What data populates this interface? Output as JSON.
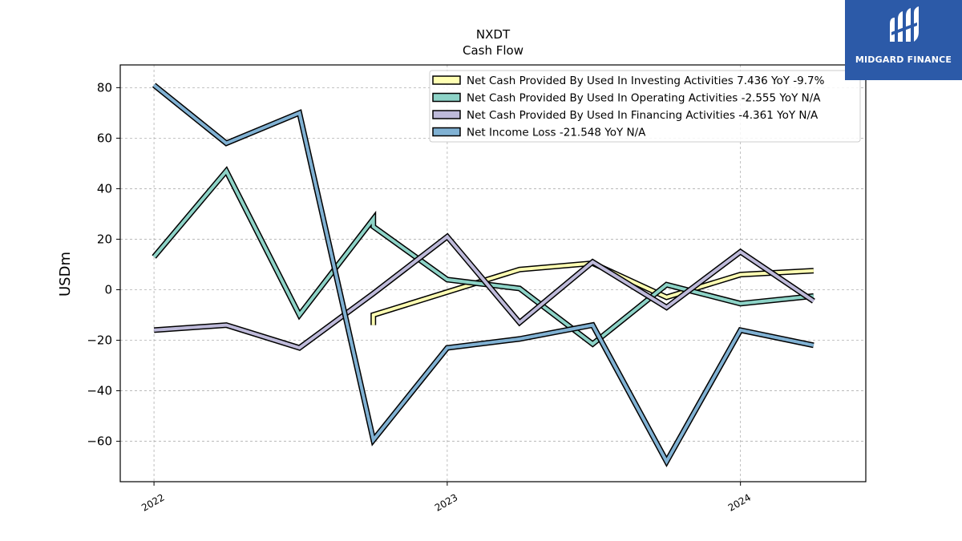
{
  "brand": {
    "name": "MIDGARD FINANCE",
    "bg_color": "#2c5aa8"
  },
  "chart_data": {
    "type": "line",
    "title": "NXDT",
    "subtitle": "Cash Flow",
    "ylabel": "USDm",
    "xlabel": "",
    "ylim": [
      -76,
      89
    ],
    "yticks": [
      80,
      60,
      40,
      20,
      0,
      -20,
      -40,
      -60
    ],
    "ytick_labels": [
      "80",
      "60",
      "40",
      "20",
      "0",
      "−20",
      "−40",
      "−60"
    ],
    "xlim": [
      "2021-11-20",
      "2024-06-05"
    ],
    "xticks": [
      "2022-01-01",
      "2023-01-01",
      "2024-01-01"
    ],
    "xtick_labels": [
      "2022",
      "2023",
      "2024"
    ],
    "grid": true,
    "legend_position": "top-right",
    "series": [
      {
        "name": "Net Cash Provided By Used In Investing Activities  7.436 YoY -9.7%",
        "color": "#ffffb3",
        "x": [
          "2022-10-01",
          "2022-10-01",
          "2023-04-01",
          "2023-07-01",
          "2023-10-01",
          "2024-01-01",
          "2024-04-01"
        ],
        "y": [
          -14,
          -10,
          8,
          10.5,
          -3,
          6,
          7.5
        ]
      },
      {
        "name": "Net Cash Provided By Used In Operating Activities  -2.555 YoY N/A",
        "color": "#8dd3c7",
        "x": [
          "2022-01-01",
          "2022-04-01",
          "2022-07-01",
          "2022-10-01",
          "2022-10-01",
          "2023-01-01",
          "2023-04-01",
          "2023-07-01",
          "2023-10-01",
          "2024-01-01",
          "2024-04-01"
        ],
        "y": [
          13,
          47,
          -10,
          28,
          25,
          4,
          0.5,
          -21.5,
          2,
          -5.5,
          -2.5
        ]
      },
      {
        "name": "Net Cash Provided By Used In Financing Activities  -4.361 YoY N/A",
        "color": "#bebada",
        "x": [
          "2022-01-01",
          "2022-04-01",
          "2022-07-01",
          "2022-10-01",
          "2023-01-01",
          "2023-04-01",
          "2023-07-01",
          "2023-10-01",
          "2024-01-01",
          "2024-04-01"
        ],
        "y": [
          -16,
          -14,
          -23,
          -1.5,
          21,
          -13,
          11,
          -7,
          15,
          -4.5
        ]
      },
      {
        "name": "Net Income Loss  -21.548 YoY N/A",
        "color": "#80b1d3",
        "x": [
          "2022-01-01",
          "2022-04-01",
          "2022-07-01",
          "2022-10-01",
          "2023-01-01",
          "2023-04-01",
          "2023-07-01",
          "2023-10-01",
          "2024-01-01",
          "2024-04-01"
        ],
        "y": [
          81,
          58,
          70,
          -59.5,
          -23,
          -19.5,
          -14,
          -68,
          -16,
          -22
        ]
      }
    ]
  }
}
